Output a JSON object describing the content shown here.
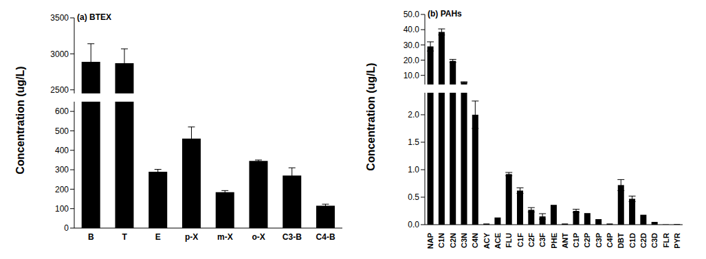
{
  "chart_data": [
    {
      "type": "bar",
      "title": "(a) BTEX",
      "y_label": "Concentration (ug/L)",
      "categories": [
        "B",
        "T",
        "E",
        "p-X",
        "m-X",
        "o-X",
        "C3-B",
        "C4-B"
      ],
      "values": [
        2890,
        2870,
        290,
        460,
        185,
        345,
        270,
        115
      ],
      "errors": [
        250,
        200,
        12,
        60,
        8,
        5,
        40,
        8
      ],
      "color": "#000000",
      "ylim": [
        0,
        3500
      ],
      "yticks": [
        0,
        100,
        200,
        300,
        400,
        500,
        600,
        2500,
        3000,
        3500
      ],
      "ybreak": [
        650,
        2450
      ]
    },
    {
      "type": "bar",
      "title": "(b) PAHs",
      "y_label": "Concentration (ug/L)",
      "categories": [
        "NAP",
        "C1N",
        "C2N",
        "C3N",
        "C4N",
        "ACY",
        "ACE",
        "FLU",
        "C1F",
        "C2F",
        "C3F",
        "PHE",
        "ANT",
        "C1P",
        "C2P",
        "C3P",
        "C4P",
        "DBT",
        "C1D",
        "C2D",
        "C3D",
        "FLR",
        "PYR"
      ],
      "values": [
        29,
        38.5,
        19.5,
        5.5,
        2.0,
        0.02,
        0.13,
        0.92,
        0.62,
        0.27,
        0.15,
        0.36,
        0.02,
        0.25,
        0.21,
        0.1,
        0.02,
        0.72,
        0.47,
        0.18,
        0.05,
        0.005,
        0.01
      ],
      "errors": [
        3,
        2,
        1,
        0.3,
        0.25,
        null,
        null,
        0.03,
        0.05,
        0.04,
        0.05,
        null,
        null,
        0.03,
        null,
        null,
        null,
        0.1,
        0.05,
        null,
        null,
        null,
        null
      ],
      "color": "#000000",
      "ylim": [
        0,
        50
      ],
      "yticks": [
        {
          "value": 0,
          "label": "0.0"
        },
        0.5,
        {
          "value": 1,
          "label": "1.0"
        },
        1.5,
        {
          "value": 2,
          "label": "2.0"
        },
        {
          "value": 10,
          "label": "10.0"
        },
        {
          "value": 20,
          "label": "20.0"
        },
        {
          "value": 30,
          "label": "30.0"
        },
        {
          "value": 40,
          "label": "40.0"
        },
        {
          "value": 50,
          "label": "50.0"
        }
      ],
      "ybreak": [
        2.4,
        4
      ]
    }
  ]
}
